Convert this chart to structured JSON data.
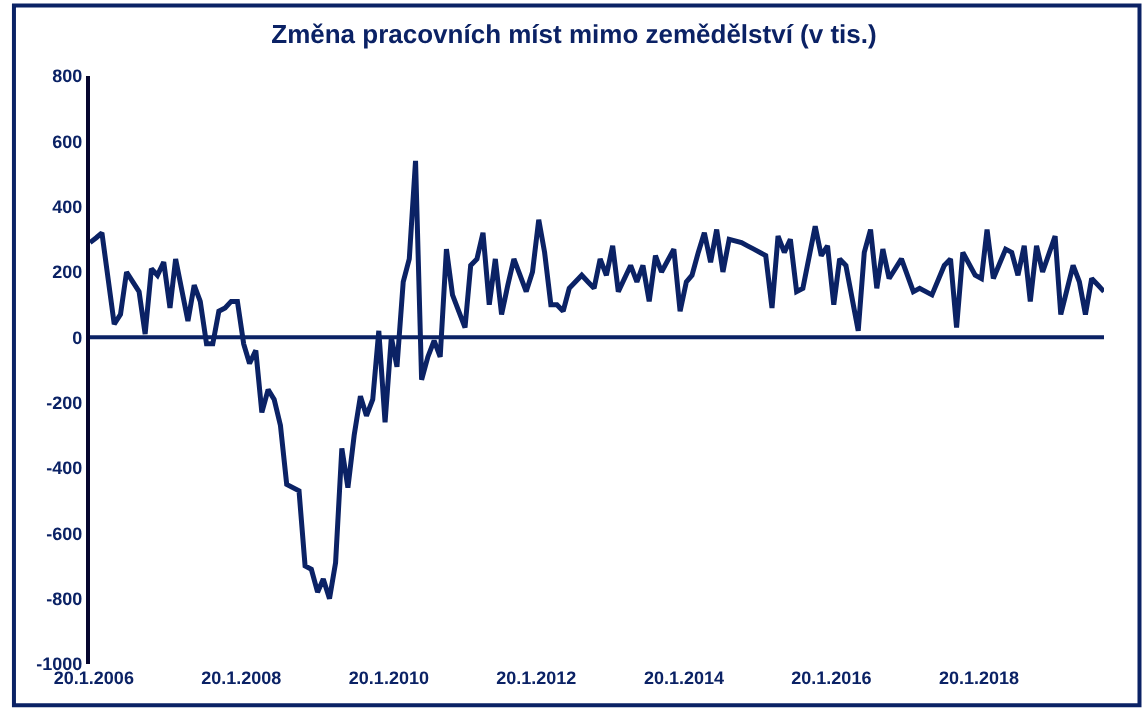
{
  "chart_data": {
    "type": "line",
    "title": "Změna pracovních míst mimo zemědělství (v tis.)",
    "x": [
      "2006-01",
      "2006-02",
      "2006-03",
      "2006-05",
      "2006-06",
      "2006-07",
      "2006-08",
      "2006-09",
      "2006-10",
      "2006-11",
      "2006-12",
      "2007-01",
      "2007-02",
      "2007-03",
      "2007-05",
      "2007-06",
      "2007-07",
      "2007-08",
      "2007-09",
      "2007-10",
      "2007-11",
      "2007-12",
      "2008-01",
      "2008-02",
      "2008-03",
      "2008-04",
      "2008-05",
      "2008-06",
      "2008-07",
      "2008-08",
      "2008-09",
      "2008-11",
      "2008-12",
      "2009-01",
      "2009-02",
      "2009-03",
      "2009-04",
      "2009-05",
      "2009-06",
      "2009-07",
      "2009-08",
      "2009-09",
      "2009-10",
      "2009-11",
      "2009-12",
      "2010-01",
      "2010-02",
      "2010-03",
      "2010-04",
      "2010-05",
      "2010-06",
      "2010-07",
      "2010-08",
      "2010-09",
      "2010-10",
      "2010-11",
      "2010-12",
      "2011-02",
      "2011-03",
      "2011-04",
      "2011-05",
      "2011-06",
      "2011-07",
      "2011-08",
      "2011-09",
      "2011-10",
      "2011-12",
      "2012-01",
      "2012-02",
      "2012-03",
      "2012-04",
      "2012-05",
      "2012-06",
      "2012-07",
      "2012-09",
      "2012-10",
      "2012-11",
      "2012-12",
      "2013-01",
      "2013-02",
      "2013-03",
      "2013-05",
      "2013-06",
      "2013-07",
      "2013-08",
      "2013-09",
      "2013-10",
      "2013-12",
      "2014-01",
      "2014-02",
      "2014-03",
      "2014-04",
      "2014-05",
      "2014-06",
      "2014-07",
      "2014-08",
      "2014-09",
      "2014-11",
      "2014-12",
      "2015-01",
      "2015-03",
      "2015-04",
      "2015-05",
      "2015-06",
      "2015-07",
      "2015-08",
      "2015-09",
      "2015-11",
      "2015-12",
      "2016-01",
      "2016-02",
      "2016-03",
      "2016-04",
      "2016-06",
      "2016-07",
      "2016-08",
      "2016-09",
      "2016-10",
      "2016-11",
      "2017-01",
      "2017-03",
      "2017-04",
      "2017-06",
      "2017-08",
      "2017-09",
      "2017-10",
      "2017-11",
      "2018-01",
      "2018-02",
      "2018-03",
      "2018-04",
      "2018-06",
      "2018-07",
      "2018-08",
      "2018-09",
      "2018-10",
      "2018-11",
      "2018-12",
      "2019-02",
      "2019-03",
      "2019-05",
      "2019-06",
      "2019-07",
      "2019-08",
      "2019-09",
      "2019-10"
    ],
    "series": [
      {
        "color": "#0b2265",
        "values": [
          290,
          305,
          320,
          40,
          70,
          200,
          170,
          140,
          10,
          210,
          190,
          230,
          90,
          240,
          50,
          160,
          110,
          -20,
          -20,
          80,
          90,
          110,
          110,
          -20,
          -80,
          -40,
          -230,
          -160,
          -190,
          -270,
          -450,
          -470,
          -700,
          -710,
          -780,
          -740,
          -800,
          -690,
          -340,
          -460,
          -300,
          -180,
          -240,
          -190,
          20,
          -260,
          0,
          -90,
          170,
          240,
          540,
          -130,
          -60,
          -10,
          -60,
          270,
          130,
          30,
          220,
          240,
          320,
          100,
          240,
          70,
          160,
          240,
          140,
          200,
          360,
          260,
          100,
          100,
          80,
          150,
          190,
          170,
          150,
          240,
          190,
          280,
          140,
          220,
          170,
          220,
          110,
          250,
          200,
          270,
          80,
          170,
          190,
          260,
          320,
          230,
          330,
          200,
          300,
          290,
          280,
          270,
          250,
          90,
          310,
          260,
          300,
          140,
          150,
          340,
          250,
          280,
          100,
          240,
          220,
          20,
          260,
          330,
          150,
          270,
          180,
          240,
          140,
          150,
          130,
          220,
          240,
          30,
          260,
          190,
          180,
          330,
          180,
          270,
          260,
          190,
          280,
          110,
          280,
          200,
          310,
          70,
          220,
          170,
          70,
          180,
          160,
          140
        ]
      }
    ],
    "xlim": [
      "2006-01-01",
      "2019-10-01"
    ],
    "xticks": [
      {
        "value": "2006-01-20",
        "label": "20.1.2006"
      },
      {
        "value": "2008-01-20",
        "label": "20.1.2008"
      },
      {
        "value": "2010-01-20",
        "label": "20.1.2010"
      },
      {
        "value": "2012-01-20",
        "label": "20.1.2012"
      },
      {
        "value": "2014-01-20",
        "label": "20.1.2014"
      },
      {
        "value": "2016-01-20",
        "label": "20.1.2016"
      },
      {
        "value": "2018-01-20",
        "label": "20.1.2018"
      }
    ],
    "ylim": [
      -1000,
      800
    ],
    "yticks": [
      -1000,
      -800,
      -600,
      -400,
      -200,
      0,
      200,
      400,
      600,
      800
    ],
    "ref_lines": [
      {
        "axis": "y",
        "value": 0,
        "color": "#0b2265"
      }
    ],
    "marker": "none",
    "line_style": "solid"
  }
}
